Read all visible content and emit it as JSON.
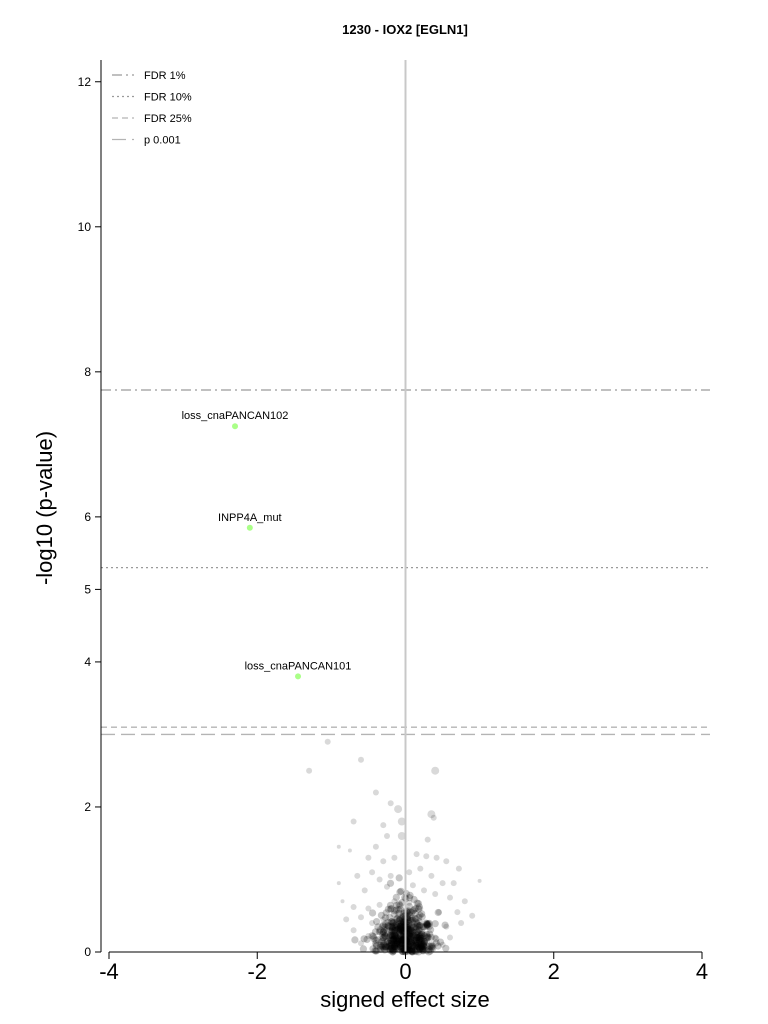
{
  "chart_data": {
    "type": "scatter",
    "title": "1230 - IOX2 [EGLN1]",
    "xlabel": "signed effect size",
    "ylabel": "-log10 (p-value)",
    "xlim": [
      -4,
      4
    ],
    "ylim": [
      0,
      12.3
    ],
    "x_ticks": [
      -4,
      -2,
      0,
      2,
      4
    ],
    "y_ticks": [
      0,
      2,
      4,
      5,
      6,
      8,
      10,
      12
    ],
    "grid": false,
    "legend_position": "top-left",
    "thresholds": [
      {
        "name": "FDR 1%",
        "y": 7.75,
        "style": "dashdot",
        "color": "#9a9a9a"
      },
      {
        "name": "FDR 10%",
        "y": 5.3,
        "style": "dotted",
        "color": "#9a9a9a"
      },
      {
        "name": "FDR 25%",
        "y": 3.1,
        "style": "dashed-short",
        "color": "#b4b4b4"
      },
      {
        "name": "p 0.001",
        "y": 3.0,
        "style": "dashed-long",
        "color": "#b4b4b4"
      }
    ],
    "highlighted_points": [
      {
        "label": "loss_cnaPANCAN102",
        "x": -2.3,
        "y": 7.25,
        "color": "#aaff88"
      },
      {
        "label": "INPP4A_mut",
        "x": -2.1,
        "y": 5.85,
        "color": "#aaff88"
      },
      {
        "label": "loss_cnaPANCAN101",
        "x": -1.45,
        "y": 3.8,
        "color": "#aaff88"
      }
    ],
    "background_points": [
      [
        -1.05,
        2.9,
        3
      ],
      [
        -0.6,
        2.65,
        3
      ],
      [
        -1.3,
        2.5,
        3
      ],
      [
        0.4,
        2.5,
        4
      ],
      [
        -0.4,
        2.2,
        3
      ],
      [
        -0.2,
        2.05,
        3
      ],
      [
        -0.1,
        1.97,
        4
      ],
      [
        -0.05,
        1.8,
        4
      ],
      [
        0.35,
        1.9,
        4
      ],
      [
        0.38,
        1.85,
        3
      ],
      [
        -0.7,
        1.8,
        3
      ],
      [
        -0.3,
        1.75,
        3
      ],
      [
        -0.4,
        1.45,
        3
      ],
      [
        -0.25,
        1.6,
        3
      ],
      [
        -0.05,
        1.6,
        4
      ],
      [
        0.3,
        1.55,
        3
      ],
      [
        -0.9,
        1.45,
        2
      ],
      [
        -0.75,
        1.4,
        2
      ],
      [
        -0.5,
        1.3,
        3
      ],
      [
        -0.3,
        1.25,
        3
      ],
      [
        -0.15,
        1.3,
        3
      ],
      [
        0.15,
        1.35,
        3
      ],
      [
        0.28,
        1.32,
        3
      ],
      [
        0.42,
        1.3,
        3
      ],
      [
        0.55,
        1.25,
        3
      ],
      [
        0.72,
        1.15,
        3
      ],
      [
        -0.65,
        1.05,
        3
      ],
      [
        -0.45,
        1.1,
        3
      ],
      [
        -0.35,
        1.0,
        3
      ],
      [
        -0.2,
        1.05,
        3
      ],
      [
        0.05,
        1.1,
        3
      ],
      [
        0.2,
        1.15,
        3
      ],
      [
        0.35,
        1.05,
        3
      ],
      [
        0.5,
        0.95,
        3
      ],
      [
        0.65,
        0.95,
        3
      ],
      [
        1.0,
        0.98,
        2
      ],
      [
        -0.9,
        0.95,
        2
      ],
      [
        -0.55,
        0.85,
        3
      ],
      [
        -0.25,
        0.9,
        3
      ],
      [
        0.1,
        0.92,
        3
      ],
      [
        0.25,
        0.85,
        3
      ],
      [
        0.4,
        0.8,
        3
      ],
      [
        0.6,
        0.75,
        3
      ],
      [
        0.8,
        0.7,
        3
      ],
      [
        -0.85,
        0.7,
        2
      ],
      [
        -0.7,
        0.62,
        3
      ],
      [
        -0.5,
        0.6,
        3
      ],
      [
        -0.35,
        0.65,
        3
      ],
      [
        -0.15,
        0.7,
        3
      ],
      [
        0.05,
        0.68,
        3
      ],
      [
        0.2,
        0.6,
        3
      ],
      [
        0.45,
        0.55,
        3
      ],
      [
        0.7,
        0.55,
        3
      ],
      [
        0.9,
        0.5,
        3
      ],
      [
        -0.8,
        0.45,
        3
      ],
      [
        -0.6,
        0.48,
        3
      ],
      [
        -0.45,
        0.4,
        3
      ],
      [
        -0.3,
        0.45,
        3
      ],
      [
        -0.1,
        0.5,
        3
      ],
      [
        0.1,
        0.45,
        3
      ],
      [
        0.3,
        0.4,
        3
      ],
      [
        0.55,
        0.35,
        3
      ],
      [
        0.75,
        0.4,
        3
      ],
      [
        -0.7,
        0.3,
        3
      ],
      [
        -0.5,
        0.22,
        3
      ],
      [
        -0.35,
        0.28,
        3
      ],
      [
        -0.2,
        0.3,
        3
      ],
      [
        0.0,
        0.32,
        3
      ],
      [
        0.2,
        0.25,
        3
      ],
      [
        0.4,
        0.2,
        3
      ],
      [
        0.6,
        0.2,
        3
      ],
      [
        -0.6,
        0.12,
        3
      ],
      [
        -0.4,
        0.1,
        3
      ],
      [
        -0.25,
        0.15,
        3
      ],
      [
        -0.08,
        0.12,
        3
      ],
      [
        0.1,
        0.1,
        3
      ],
      [
        0.3,
        0.08,
        3
      ],
      [
        0.5,
        0.1,
        3
      ],
      [
        -0.3,
        0.05,
        3
      ],
      [
        0.0,
        0.05,
        3
      ],
      [
        0.25,
        0.04,
        3
      ],
      [
        -0.15,
        0.03,
        3
      ]
    ],
    "dense_cluster": {
      "x_center": 0.0,
      "x_spread": 0.28,
      "y_max": 1.2,
      "count": 520
    }
  }
}
